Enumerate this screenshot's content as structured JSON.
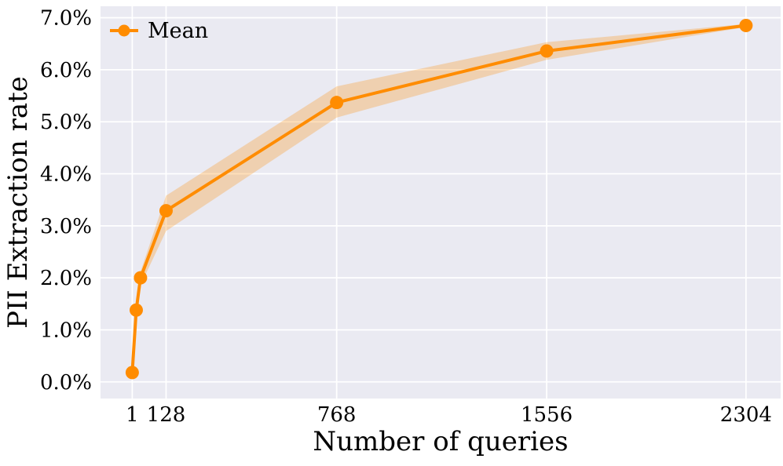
{
  "chart_data": {
    "type": "line",
    "title": "",
    "xlabel": "Number of queries",
    "ylabel": "PII Extraction rate",
    "legend_label": "Mean",
    "legend_position": "upper left",
    "grid": true,
    "x": [
      1,
      16,
      32,
      128,
      768,
      1556,
      2304
    ],
    "series": [
      {
        "name": "Mean",
        "values": [
          0.18,
          1.38,
          2.0,
          3.29,
          5.37,
          6.36,
          6.85
        ]
      }
    ],
    "band": {
      "upper": [
        0.22,
        1.48,
        2.12,
        3.58,
        5.68,
        6.53,
        6.88
      ],
      "lower": [
        0.14,
        1.28,
        1.86,
        2.9,
        5.08,
        6.19,
        6.82
      ]
    },
    "xticks": {
      "values": [
        1,
        128,
        768,
        1556,
        2304
      ],
      "labels": [
        "1",
        "128",
        "768",
        "1556",
        "2304"
      ]
    },
    "yticks": {
      "values": [
        0,
        1,
        2,
        3,
        4,
        5,
        6,
        7
      ],
      "labels": [
        "0.0%",
        "1.0%",
        "2.0%",
        "3.0%",
        "4.0%",
        "5.0%",
        "6.0%",
        "7.0%"
      ]
    },
    "xlim": [
      -118,
      2434
    ],
    "ylim": [
      -0.32,
      7.22
    ],
    "colors": {
      "line": "#ff8c00",
      "marker": "#ff8c00",
      "band": "#ff8c00",
      "band_opacity": "0.27",
      "plot_background": "#eaeaf2",
      "gridline": "#ffffff",
      "text": "#000000"
    }
  }
}
